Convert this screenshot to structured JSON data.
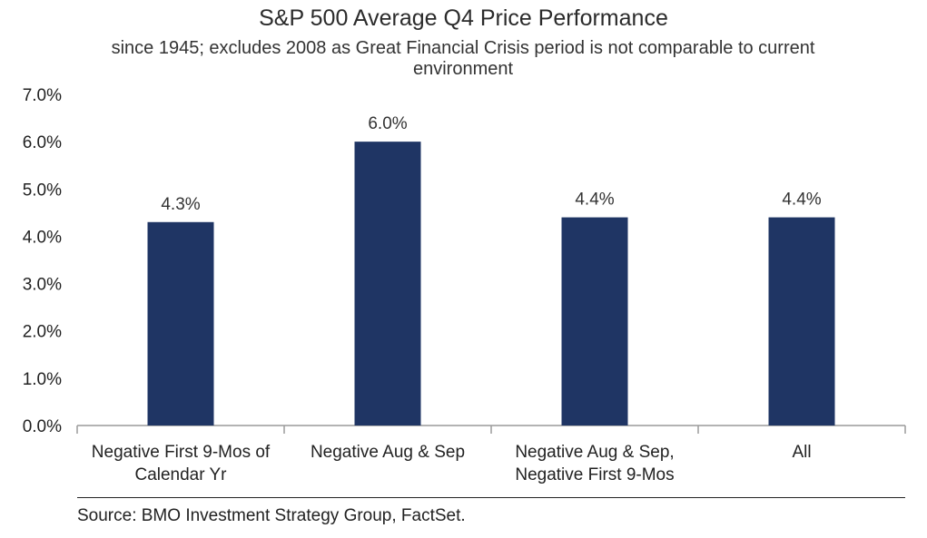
{
  "chart_data": {
    "type": "bar",
    "title": "S&P 500 Average Q4 Price Performance",
    "subtitle": "since 1945; excludes 2008 as Great Financial Crisis period is not comparable to current environment",
    "categories": [
      [
        "Negative First 9-Mos of",
        "Calendar Yr"
      ],
      [
        "Negative Aug & Sep"
      ],
      [
        "Negative Aug & Sep,",
        "Negative First 9-Mos"
      ],
      [
        "All"
      ]
    ],
    "values": [
      4.3,
      6.0,
      4.4,
      4.4
    ],
    "data_labels": [
      "4.3%",
      "6.0%",
      "4.4%",
      "4.4%"
    ],
    "yticks": [
      "0.0%",
      "1.0%",
      "2.0%",
      "3.0%",
      "4.0%",
      "5.0%",
      "6.0%",
      "7.0%"
    ],
    "ylim": [
      0,
      7
    ],
    "grid": false,
    "bar_color": "#1f3564"
  },
  "footer": {
    "source": "Source: BMO Investment Strategy Group, FactSet."
  }
}
